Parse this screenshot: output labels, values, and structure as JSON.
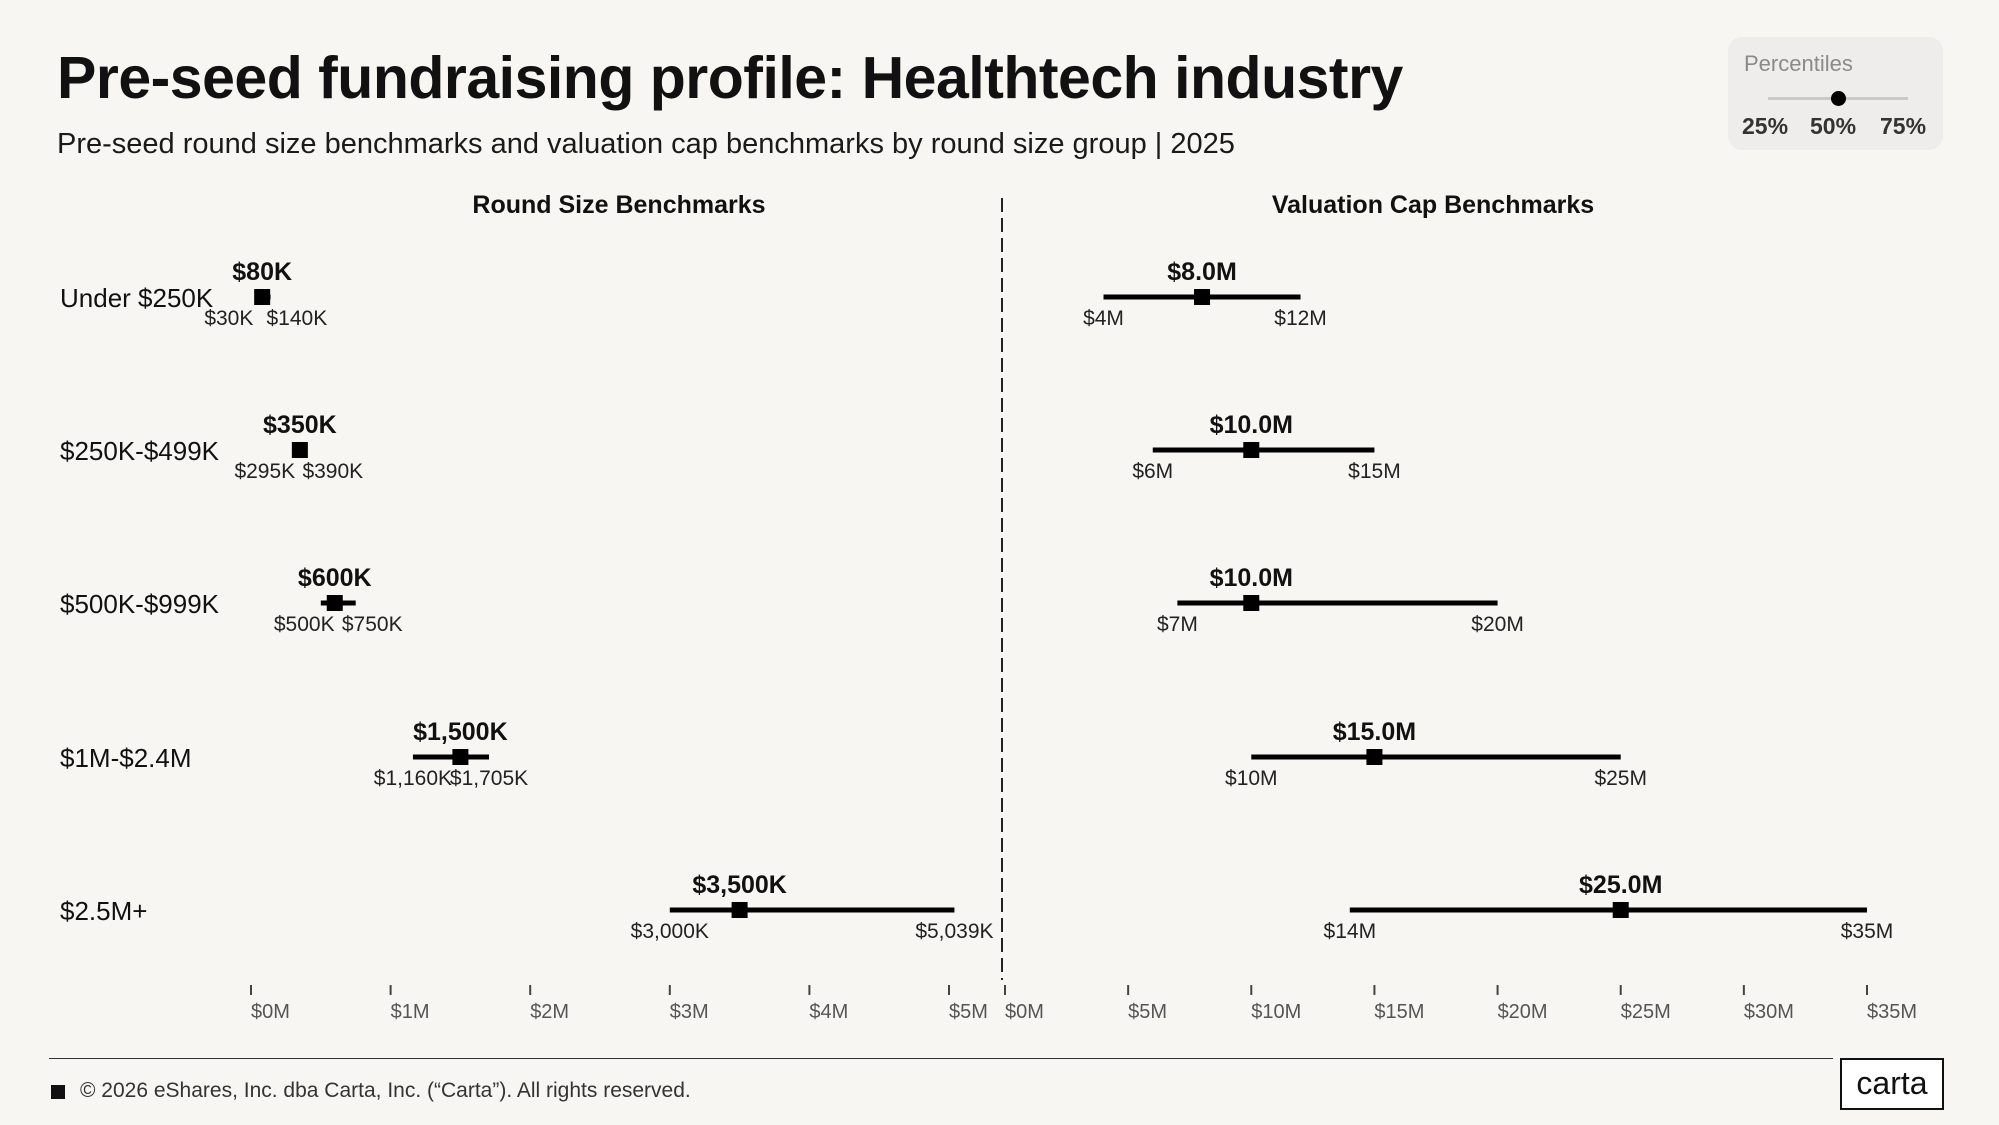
{
  "header": {
    "title": "Pre-seed fundraising profile: Healthtech industry",
    "subtitle": "Pre-seed round size benchmarks and valuation cap benchmarks by round size group | 2025"
  },
  "legend": {
    "title": "Percentiles",
    "labels": [
      "25%",
      "50%",
      "75%"
    ]
  },
  "footer": {
    "copyright": "© 2026 eShares, Inc. dba Carta, Inc. (“Carta”). All rights reserved.",
    "logo": "carta"
  },
  "chart_data": {
    "type": "range",
    "groups": [
      "Under $250K",
      "$250K-$499K",
      "$500K-$999K",
      "$1M-$2.4M",
      "$2.5M+"
    ],
    "panels": [
      {
        "title": "Round Size Benchmarks",
        "unit": "thousands USD",
        "xlim": [
          0,
          5000
        ],
        "ticks": [
          {
            "value": 0,
            "label": "$0M"
          },
          {
            "value": 1000,
            "label": "$1M"
          },
          {
            "value": 2000,
            "label": "$2M"
          },
          {
            "value": 3000,
            "label": "$3M"
          },
          {
            "value": 4000,
            "label": "$4M"
          },
          {
            "value": 5000,
            "label": "$5M"
          }
        ],
        "rows": [
          {
            "p25": 30,
            "p50": 80,
            "p75": 140,
            "p25_label": "$30K",
            "p50_label": "$80K",
            "p75_label": "$140K"
          },
          {
            "p25": 295,
            "p50": 350,
            "p75": 390,
            "p25_label": "$295K",
            "p50_label": "$350K",
            "p75_label": "$390K"
          },
          {
            "p25": 500,
            "p50": 600,
            "p75": 750,
            "p25_label": "$500K",
            "p50_label": "$600K",
            "p75_label": "$750K"
          },
          {
            "p25": 1160,
            "p50": 1500,
            "p75": 1705,
            "p25_label": "$1,160K",
            "p50_label": "$1,500K",
            "p75_label": "$1,705K"
          },
          {
            "p25": 3000,
            "p50": 3500,
            "p75": 5039,
            "p25_label": "$3,000K",
            "p50_label": "$3,500K",
            "p75_label": "$5,039K"
          }
        ]
      },
      {
        "title": "Valuation Cap Benchmarks",
        "unit": "millions USD",
        "xlim": [
          0,
          35
        ],
        "ticks": [
          {
            "value": 0,
            "label": "$0M"
          },
          {
            "value": 5,
            "label": "$5M"
          },
          {
            "value": 10,
            "label": "$10M"
          },
          {
            "value": 15,
            "label": "$15M"
          },
          {
            "value": 20,
            "label": "$20M"
          },
          {
            "value": 25,
            "label": "$25M"
          },
          {
            "value": 30,
            "label": "$30M"
          },
          {
            "value": 35,
            "label": "$35M"
          }
        ],
        "rows": [
          {
            "p25": 4,
            "p50": 8,
            "p75": 12,
            "p25_label": "$4M",
            "p50_label": "$8.0M",
            "p75_label": "$12M"
          },
          {
            "p25": 6,
            "p50": 10,
            "p75": 15,
            "p25_label": "$6M",
            "p50_label": "$10.0M",
            "p75_label": "$15M"
          },
          {
            "p25": 7,
            "p50": 10,
            "p75": 20,
            "p25_label": "$7M",
            "p50_label": "$10.0M",
            "p75_label": "$20M"
          },
          {
            "p25": 10,
            "p50": 15,
            "p75": 25,
            "p25_label": "$10M",
            "p50_label": "$15.0M",
            "p75_label": "$25M"
          },
          {
            "p25": 14,
            "p50": 25,
            "p75": 35,
            "p25_label": "$14M",
            "p50_label": "$25.0M",
            "p75_label": "$35M"
          }
        ]
      }
    ]
  }
}
